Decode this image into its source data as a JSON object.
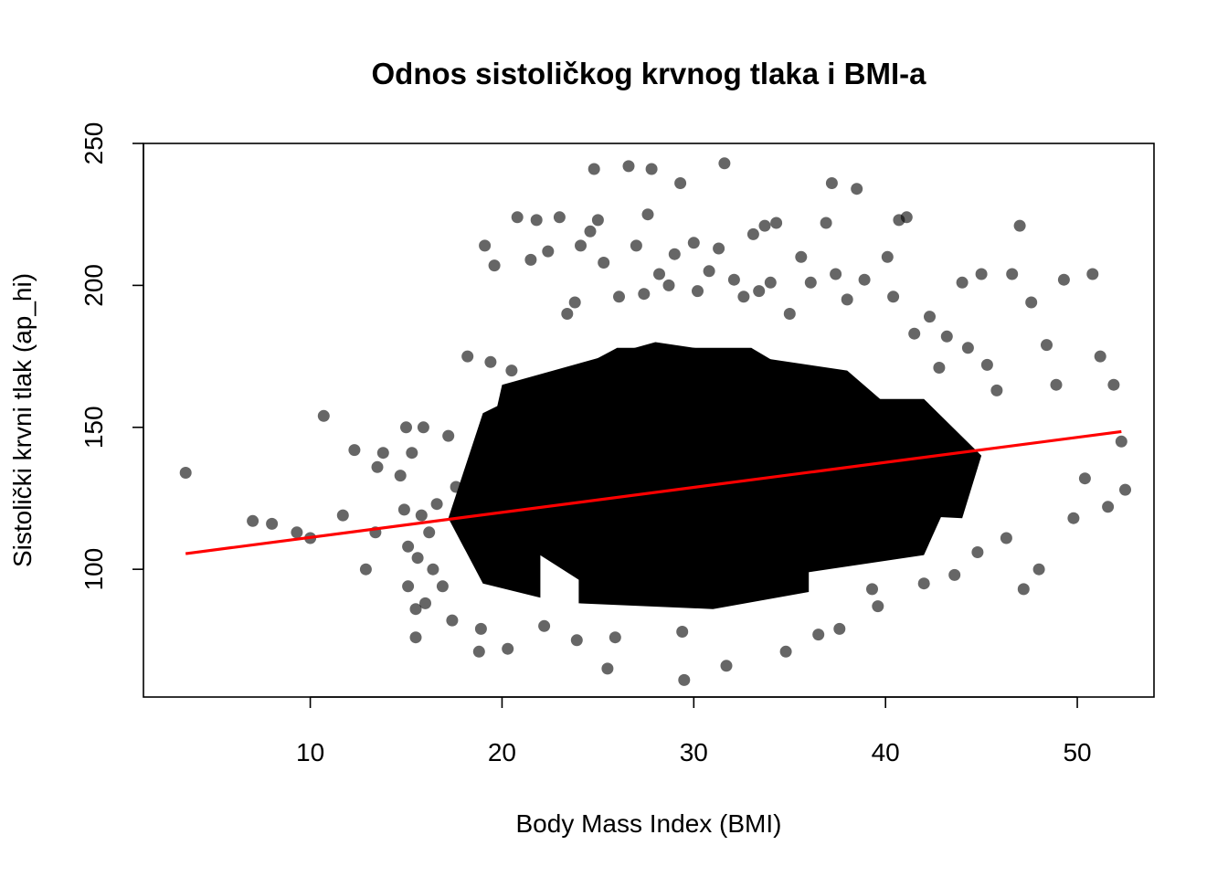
{
  "chart_data": {
    "type": "scatter",
    "title": "Odnos sistoličkog krvnog tlaka i BMI-a",
    "xlabel": "Body Mass Index (BMI)",
    "ylabel": "Sistolički krvni tlak (ap_hi)",
    "xlim": [
      1.3,
      54
    ],
    "ylim": [
      55,
      250
    ],
    "x_ticks": [
      10,
      20,
      30,
      40,
      50
    ],
    "y_ticks": [
      100,
      150,
      200,
      250
    ],
    "grid": false,
    "legend": "none",
    "colors": {
      "points": "#000000",
      "trend": "#ff0000",
      "axes": "#000000"
    },
    "series": [
      {
        "type": "scatter",
        "points": [
          [
            3.5,
            134
          ],
          [
            7.0,
            117
          ],
          [
            8.0,
            116
          ],
          [
            9.3,
            113
          ],
          [
            10.0,
            111
          ],
          [
            10.7,
            154
          ],
          [
            11.7,
            119
          ],
          [
            12.3,
            142
          ],
          [
            12.9,
            100
          ],
          [
            13.4,
            113
          ],
          [
            13.5,
            136
          ],
          [
            13.8,
            141
          ],
          [
            14.7,
            133
          ],
          [
            14.9,
            121
          ],
          [
            15.0,
            150
          ],
          [
            15.1,
            94
          ],
          [
            15.1,
            108
          ],
          [
            15.3,
            141
          ],
          [
            15.5,
            76
          ],
          [
            15.5,
            86
          ],
          [
            15.6,
            104
          ],
          [
            15.8,
            119
          ],
          [
            15.9,
            150
          ],
          [
            16.0,
            88
          ],
          [
            16.2,
            113
          ],
          [
            16.4,
            100
          ],
          [
            16.6,
            123
          ],
          [
            16.9,
            94
          ],
          [
            17.2,
            147
          ],
          [
            17.4,
            82
          ],
          [
            17.6,
            129
          ],
          [
            18.2,
            175
          ],
          [
            18.8,
            71
          ],
          [
            18.9,
            79
          ],
          [
            19.1,
            214
          ],
          [
            19.4,
            173
          ],
          [
            19.6,
            207
          ],
          [
            20.3,
            72
          ],
          [
            20.5,
            170
          ],
          [
            20.8,
            224
          ],
          [
            21.5,
            209
          ],
          [
            21.8,
            223
          ],
          [
            22.2,
            80
          ],
          [
            22.4,
            212
          ],
          [
            23.0,
            224
          ],
          [
            23.4,
            190
          ],
          [
            23.8,
            194
          ],
          [
            23.9,
            75
          ],
          [
            24.1,
            214
          ],
          [
            24.6,
            219
          ],
          [
            24.8,
            241
          ],
          [
            25.0,
            223
          ],
          [
            25.3,
            208
          ],
          [
            25.5,
            65
          ],
          [
            25.9,
            76
          ],
          [
            26.1,
            196
          ],
          [
            26.6,
            242
          ],
          [
            27.0,
            214
          ],
          [
            27.4,
            197
          ],
          [
            27.6,
            225
          ],
          [
            27.8,
            241
          ],
          [
            28.2,
            204
          ],
          [
            28.7,
            200
          ],
          [
            29.0,
            211
          ],
          [
            29.3,
            236
          ],
          [
            29.4,
            78
          ],
          [
            29.5,
            61
          ],
          [
            30.0,
            215
          ],
          [
            30.2,
            198
          ],
          [
            30.8,
            205
          ],
          [
            31.3,
            213
          ],
          [
            31.6,
            243
          ],
          [
            31.7,
            66
          ],
          [
            32.1,
            202
          ],
          [
            32.6,
            196
          ],
          [
            33.1,
            218
          ],
          [
            33.4,
            198
          ],
          [
            33.7,
            221
          ],
          [
            34.0,
            201
          ],
          [
            34.3,
            222
          ],
          [
            34.8,
            71
          ],
          [
            35.0,
            190
          ],
          [
            35.6,
            210
          ],
          [
            36.1,
            201
          ],
          [
            36.5,
            77
          ],
          [
            36.9,
            222
          ],
          [
            37.2,
            236
          ],
          [
            37.4,
            204
          ],
          [
            37.6,
            79
          ],
          [
            38.0,
            195
          ],
          [
            38.5,
            234
          ],
          [
            38.9,
            202
          ],
          [
            39.3,
            93
          ],
          [
            39.6,
            87
          ],
          [
            40.1,
            210
          ],
          [
            40.4,
            196
          ],
          [
            40.7,
            223
          ],
          [
            41.1,
            224
          ],
          [
            41.5,
            183
          ],
          [
            42.0,
            95
          ],
          [
            42.3,
            189
          ],
          [
            42.8,
            171
          ],
          [
            43.2,
            182
          ],
          [
            43.6,
            98
          ],
          [
            44.0,
            201
          ],
          [
            44.3,
            178
          ],
          [
            44.8,
            106
          ],
          [
            45.0,
            204
          ],
          [
            45.3,
            172
          ],
          [
            45.8,
            163
          ],
          [
            46.3,
            111
          ],
          [
            46.6,
            204
          ],
          [
            47.0,
            221
          ],
          [
            47.2,
            93
          ],
          [
            47.6,
            194
          ],
          [
            48.0,
            100
          ],
          [
            48.4,
            179
          ],
          [
            48.9,
            165
          ],
          [
            49.3,
            202
          ],
          [
            49.8,
            118
          ],
          [
            50.4,
            132
          ],
          [
            50.8,
            204
          ],
          [
            51.2,
            175
          ],
          [
            51.6,
            122
          ],
          [
            51.9,
            165
          ],
          [
            52.3,
            145
          ],
          [
            52.5,
            128
          ]
        ]
      },
      {
        "type": "line",
        "name": "",
        "x": [
          3.5,
          52.3
        ],
        "y": [
          105.5,
          148.5
        ]
      }
    ]
  }
}
